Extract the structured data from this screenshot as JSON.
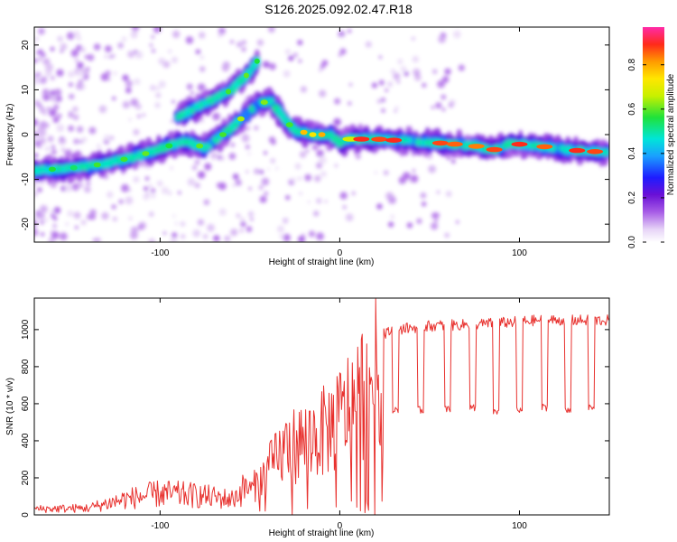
{
  "title": "S126.2025.092.02.47.R18",
  "chart_data": [
    {
      "type": "heatmap",
      "xlabel": "Height of straight line (km)",
      "ylabel": "Frequency (Hz)",
      "xlim": [
        -170,
        150
      ],
      "ylim": [
        -24,
        24
      ],
      "x_ticks": [
        -100,
        0,
        100
      ],
      "y_ticks": [
        20,
        10,
        0,
        -10,
        -20
      ],
      "colorbar": {
        "label": "Normalized spectral amplitude",
        "range": [
          0,
          0.97
        ],
        "ticks": [
          0.0,
          0.2,
          0.4,
          0.6,
          0.8
        ],
        "colormap": "rainbow (white-violet-purple-blue-cyan-green-yellow-orange-red)"
      },
      "ridges": [
        {
          "points": [
            [
              -170,
              -8
            ],
            [
              -150,
              -7.5
            ],
            [
              -130,
              -6.5
            ],
            [
              -110,
              -4.5
            ],
            [
              -95,
              -2.5
            ],
            [
              -85,
              -1.5
            ],
            [
              -75,
              -3
            ],
            [
              -65,
              0
            ],
            [
              -55,
              3.5
            ],
            [
              -45,
              7
            ],
            [
              -38,
              7.5
            ],
            [
              -30,
              3
            ],
            [
              -25,
              1
            ],
            [
              -15,
              0
            ],
            [
              -5,
              0
            ],
            [
              0,
              -2
            ],
            [
              5,
              -1
            ],
            [
              20,
              -1
            ],
            [
              40,
              -1.5
            ],
            [
              60,
              -2
            ],
            [
              75,
              -2.5
            ],
            [
              85,
              -3.5
            ],
            [
              95,
              -2
            ],
            [
              110,
              -2.5
            ],
            [
              130,
              -3.5
            ],
            [
              150,
              -4
            ]
          ]
        },
        {
          "points": [
            [
              -90,
              4
            ],
            [
              -75,
              7
            ],
            [
              -60,
              10
            ],
            [
              -50,
              14
            ],
            [
              -45,
              17
            ]
          ]
        }
      ]
    },
    {
      "type": "line",
      "xlabel": "Height of straight line (km)",
      "ylabel": "SNR (10 * v/v)",
      "xlim": [
        -170,
        150
      ],
      "ylim": [
        0,
        1170
      ],
      "x_ticks": [
        -100,
        0,
        100
      ],
      "y_ticks": [
        0,
        200,
        400,
        600,
        800,
        1000
      ],
      "series": [
        {
          "color": "#e8312e",
          "envelope": [
            [
              -170,
              30
            ],
            [
              -140,
              35
            ],
            [
              -120,
              80
            ],
            [
              -100,
              110
            ],
            [
              -80,
              100
            ],
            [
              -60,
              80
            ],
            [
              -50,
              160
            ],
            [
              -40,
              300
            ],
            [
              -30,
              450
            ],
            [
              -20,
              500
            ],
            [
              -10,
              550
            ],
            [
              0,
              650
            ],
            [
              10,
              800
            ],
            [
              20,
              950
            ],
            [
              30,
              1000
            ],
            [
              50,
              1020
            ],
            [
              80,
              1030
            ],
            [
              110,
              1050
            ],
            [
              150,
              1050
            ]
          ],
          "dips": [
            [
              31,
              570
            ],
            [
              45,
              565
            ],
            [
              60,
              570
            ],
            [
              74,
              580
            ],
            [
              87,
              560
            ],
            [
              100,
              560
            ],
            [
              114,
              580
            ],
            [
              127,
              560
            ],
            [
              140,
              580
            ]
          ]
        }
      ]
    }
  ]
}
